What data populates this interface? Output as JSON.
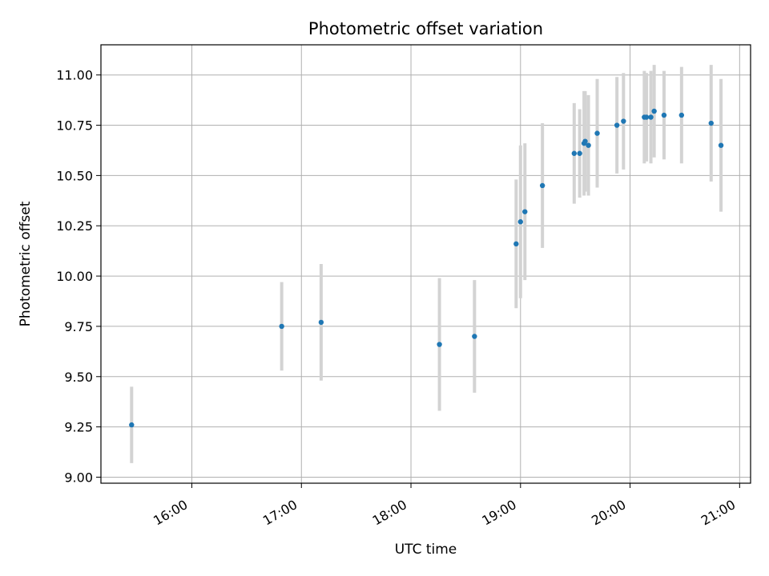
{
  "chart_data": {
    "type": "scatter",
    "title": "Photometric offset variation",
    "xlabel": "UTC time",
    "ylabel": "Photometric offset",
    "x_unit": "hours (UTC)",
    "xlim": [
      15.17,
      21.1
    ],
    "ylim": [
      8.97,
      11.15
    ],
    "grid": true,
    "marker_color": "#1f77b4",
    "errorbar_color": "#d3d3d3",
    "x_ticks": [
      {
        "value": 16,
        "label": "16:00"
      },
      {
        "value": 17,
        "label": "17:00"
      },
      {
        "value": 18,
        "label": "18:00"
      },
      {
        "value": 19,
        "label": "19:00"
      },
      {
        "value": 20,
        "label": "20:00"
      },
      {
        "value": 21,
        "label": "21:00"
      }
    ],
    "y_ticks": [
      {
        "value": 9.0,
        "label": "9.00"
      },
      {
        "value": 9.25,
        "label": "9.25"
      },
      {
        "value": 9.5,
        "label": "9.50"
      },
      {
        "value": 9.75,
        "label": "9.75"
      },
      {
        "value": 10.0,
        "label": "10.00"
      },
      {
        "value": 10.25,
        "label": "10.25"
      },
      {
        "value": 10.5,
        "label": "10.50"
      },
      {
        "value": 10.75,
        "label": "10.75"
      },
      {
        "value": 11.0,
        "label": "11.00"
      }
    ],
    "points": [
      {
        "x": 15.45,
        "y": 9.26,
        "err": 0.19
      },
      {
        "x": 16.82,
        "y": 9.75,
        "err": 0.22
      },
      {
        "x": 17.18,
        "y": 9.77,
        "err": 0.29
      },
      {
        "x": 18.26,
        "y": 9.66,
        "err": 0.33
      },
      {
        "x": 18.58,
        "y": 9.7,
        "err": 0.28
      },
      {
        "x": 18.96,
        "y": 10.16,
        "err": 0.32
      },
      {
        "x": 19.0,
        "y": 10.27,
        "err": 0.38
      },
      {
        "x": 19.04,
        "y": 10.32,
        "err": 0.34
      },
      {
        "x": 19.2,
        "y": 10.45,
        "err": 0.31
      },
      {
        "x": 19.49,
        "y": 10.61,
        "err": 0.25
      },
      {
        "x": 19.54,
        "y": 10.61,
        "err": 0.22
      },
      {
        "x": 19.58,
        "y": 10.66,
        "err": 0.26
      },
      {
        "x": 19.59,
        "y": 10.67,
        "err": 0.25
      },
      {
        "x": 19.62,
        "y": 10.65,
        "err": 0.25
      },
      {
        "x": 19.7,
        "y": 10.71,
        "err": 0.27
      },
      {
        "x": 19.88,
        "y": 10.75,
        "err": 0.24
      },
      {
        "x": 19.94,
        "y": 10.77,
        "err": 0.24
      },
      {
        "x": 20.13,
        "y": 10.79,
        "err": 0.23
      },
      {
        "x": 20.15,
        "y": 10.79,
        "err": 0.22
      },
      {
        "x": 20.19,
        "y": 10.79,
        "err": 0.23
      },
      {
        "x": 20.22,
        "y": 10.82,
        "err": 0.23
      },
      {
        "x": 20.31,
        "y": 10.8,
        "err": 0.22
      },
      {
        "x": 20.47,
        "y": 10.8,
        "err": 0.24
      },
      {
        "x": 20.74,
        "y": 10.76,
        "err": 0.29
      },
      {
        "x": 20.83,
        "y": 10.65,
        "err": 0.33
      }
    ]
  }
}
